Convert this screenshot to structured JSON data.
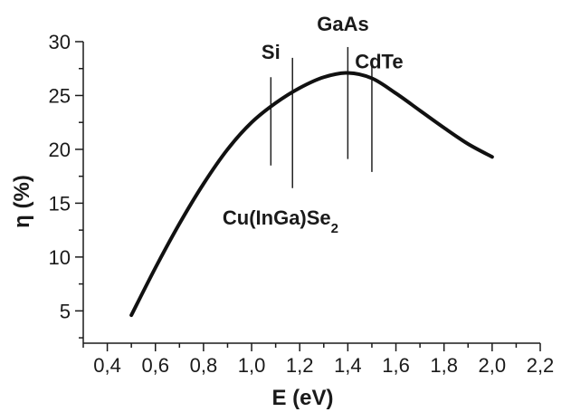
{
  "chart_data": {
    "type": "line",
    "xlabel": "E (eV)",
    "ylabel": "η (%)",
    "xlim": [
      0.3,
      2.2
    ],
    "ylim": [
      2,
      30
    ],
    "xticks": [
      0.4,
      0.6,
      0.8,
      1.0,
      1.2,
      1.4,
      1.6,
      1.8,
      2.0,
      2.2
    ],
    "xtick_labels": [
      "0,4",
      "0,6",
      "0,8",
      "1,0",
      "1,2",
      "1,4",
      "1,6",
      "1,8",
      "2,0",
      "2,2"
    ],
    "yticks": [
      5,
      10,
      15,
      20,
      25,
      30
    ],
    "ytick_labels": [
      "5",
      "10",
      "15",
      "20",
      "25",
      "30"
    ],
    "grid": false,
    "series": [
      {
        "x": [
          0.5,
          0.6,
          0.7,
          0.8,
          0.9,
          1.0,
          1.1,
          1.2,
          1.3,
          1.4,
          1.5,
          1.6,
          1.7,
          1.8,
          1.9,
          2.0
        ],
        "y": [
          4.6,
          9.0,
          13.1,
          16.8,
          20.0,
          22.5,
          24.3,
          25.7,
          26.7,
          27.1,
          26.6,
          25.2,
          23.6,
          22.0,
          20.5,
          19.3
        ]
      }
    ],
    "annotations": [
      {
        "label": "Si",
        "x": 1.08,
        "y_from": 18.5,
        "y_to": 26.7,
        "label_x": 1.08,
        "label_y": 28.4
      },
      {
        "label": "Cu(InGa)Se",
        "subscript": "2",
        "x": 1.17,
        "y_from": 16.4,
        "y_to": 28.5,
        "label_x": 1.12,
        "label_y": 13.0
      },
      {
        "label": "GaAs",
        "x": 1.4,
        "y_from": 19.1,
        "y_to": 29.5,
        "label_x": 1.38,
        "label_y": 31.0
      },
      {
        "label": "CdTe",
        "x": 1.5,
        "y_from": 17.9,
        "y_to": 27.8,
        "label_x": 1.53,
        "label_y": 27.5
      }
    ]
  }
}
